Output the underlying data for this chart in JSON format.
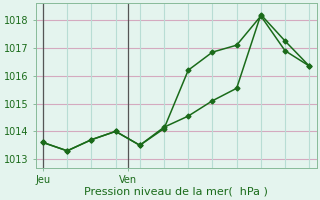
{
  "line1_x": [
    0,
    1,
    2,
    3,
    4,
    5,
    6,
    7,
    8,
    9,
    10,
    11
  ],
  "line1_y": [
    1013.6,
    1013.3,
    1013.7,
    1014.0,
    1013.5,
    1014.1,
    1016.2,
    1016.85,
    1017.1,
    1018.15,
    1016.9,
    1016.35
  ],
  "line2_x": [
    0,
    1,
    2,
    3,
    4,
    5,
    6,
    7,
    8,
    9,
    10,
    11
  ],
  "line2_y": [
    1013.6,
    1013.3,
    1013.7,
    1014.0,
    1013.5,
    1014.15,
    1014.55,
    1015.1,
    1015.55,
    1018.2,
    1017.25,
    1016.35
  ],
  "line_color": "#1a6b1a",
  "bg_color": "#e4f4ee",
  "grid_color_h": "#d4aabf",
  "grid_color_v": "#b8ddd4",
  "ylabel_ticks": [
    1013,
    1014,
    1015,
    1016,
    1017,
    1018
  ],
  "ylim": [
    1012.7,
    1018.6
  ],
  "xlim": [
    -0.3,
    11.3
  ],
  "day_labels": [
    "Jeu",
    "Ven"
  ],
  "day_vline_x": [
    0,
    3.5
  ],
  "xlabel": "Pression niveau de la mer(  hPa )",
  "xlabel_fontsize": 8,
  "tick_fontsize": 7
}
